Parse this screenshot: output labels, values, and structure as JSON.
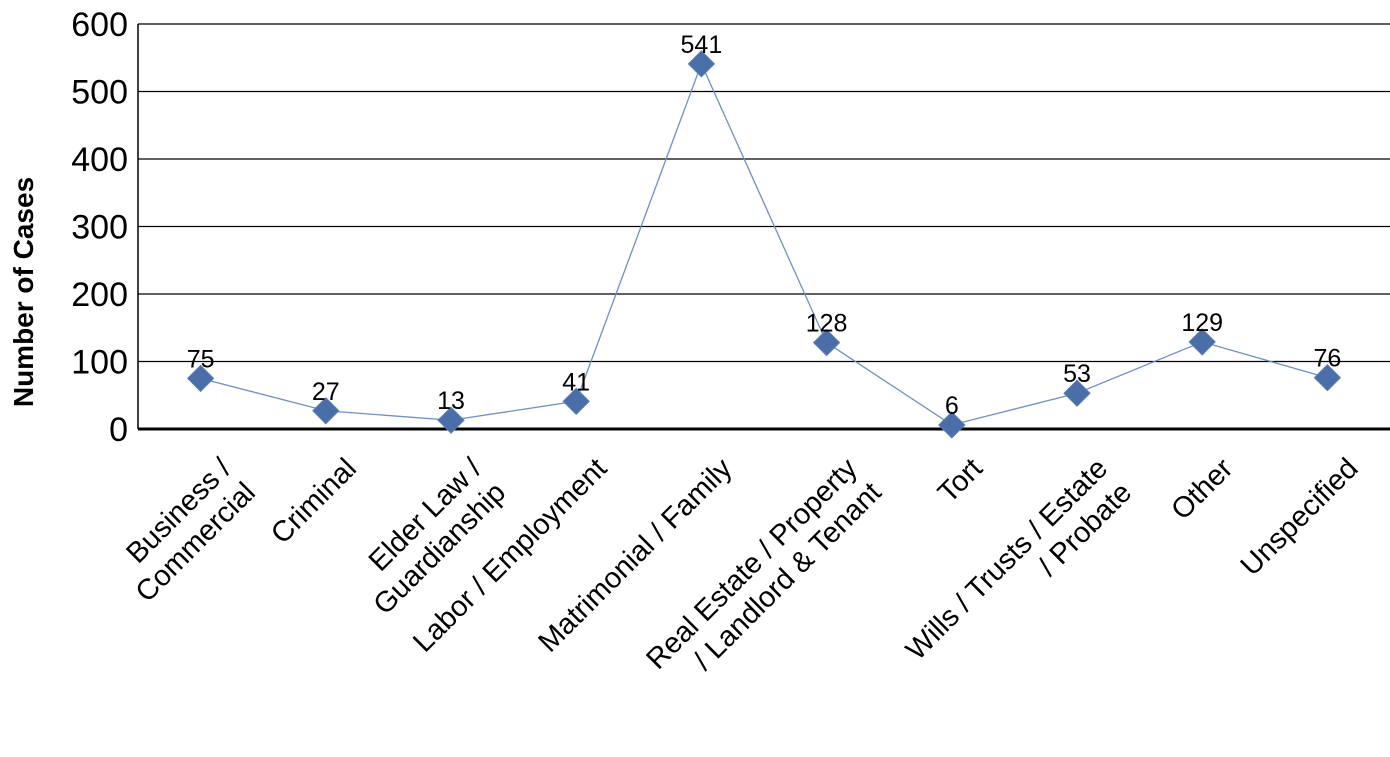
{
  "chart_data": {
    "type": "line",
    "title": "",
    "xlabel": "",
    "ylabel": "Number of Cases",
    "ylim": [
      0,
      600
    ],
    "yticks": [
      0,
      100,
      200,
      300,
      400,
      500,
      600
    ],
    "grid": true,
    "legend": "none",
    "categories": [
      [
        "Business /",
        "Commercial"
      ],
      [
        "Criminal"
      ],
      [
        "Elder Law /",
        "Guardianship"
      ],
      [
        "Labor / Employment"
      ],
      [
        "Matrimonial / Family"
      ],
      [
        "Real Estate / Property",
        "/ Landlord & Tenant"
      ],
      [
        "Tort"
      ],
      [
        "Wills / Trusts / Estate",
        "/ Probate"
      ],
      [
        "Other"
      ],
      [
        "Unspecified"
      ]
    ],
    "series": [
      {
        "values": [
          75,
          27,
          13,
          41,
          541,
          128,
          6,
          53,
          129,
          76
        ],
        "color": "#4a6ea8",
        "line_color": "#6f8fc8",
        "marker": "diamond"
      }
    ]
  }
}
